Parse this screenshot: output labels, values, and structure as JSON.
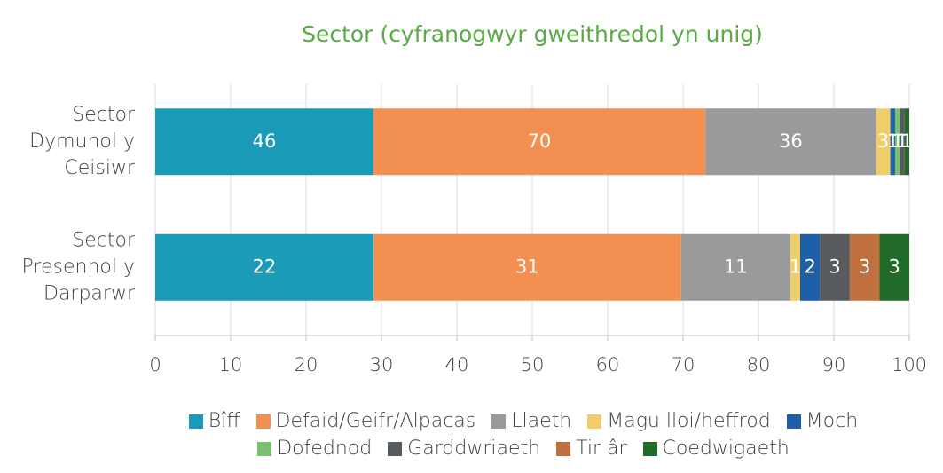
{
  "chart_data": {
    "type": "bar",
    "orientation": "horizontal",
    "stacked_percent": true,
    "title": "Sector (cyfranogwyr gweithredol yn unig)",
    "categories": [
      [
        "Sector",
        "Dymunol y",
        "Ceisiwr"
      ],
      [
        "Sector",
        "Presennol y",
        "Darparwr"
      ]
    ],
    "series": [
      {
        "name": "Bîff",
        "color": "#1a9bb8",
        "values": [
          46,
          22
        ]
      },
      {
        "name": "Defaid/Geifr/Alpacas",
        "color": "#f38f50",
        "values": [
          70,
          31
        ]
      },
      {
        "name": "Llaeth",
        "color": "#999a9c",
        "values": [
          36,
          11
        ]
      },
      {
        "name": "Magu lloi/heffrod",
        "color": "#efcd6a",
        "values": [
          3,
          1
        ]
      },
      {
        "name": "Moch",
        "color": "#1e5fa8",
        "values": [
          1,
          2
        ]
      },
      {
        "name": "Dofednod",
        "color": "#79c06f",
        "values": [
          1,
          null
        ]
      },
      {
        "name": "Garddwriaeth",
        "color": "#585b5e",
        "values": [
          1,
          3
        ]
      },
      {
        "name": "Tir âr",
        "color": "#c0703e",
        "values": [
          null,
          3
        ]
      },
      {
        "name": "Coedwigaeth",
        "color": "#1f6b27",
        "values": [
          1,
          3
        ]
      }
    ],
    "xlim": [
      0,
      100
    ],
    "xticks": [
      0,
      10,
      20,
      30,
      40,
      50,
      60,
      70,
      80,
      90,
      100
    ],
    "grid": true
  }
}
